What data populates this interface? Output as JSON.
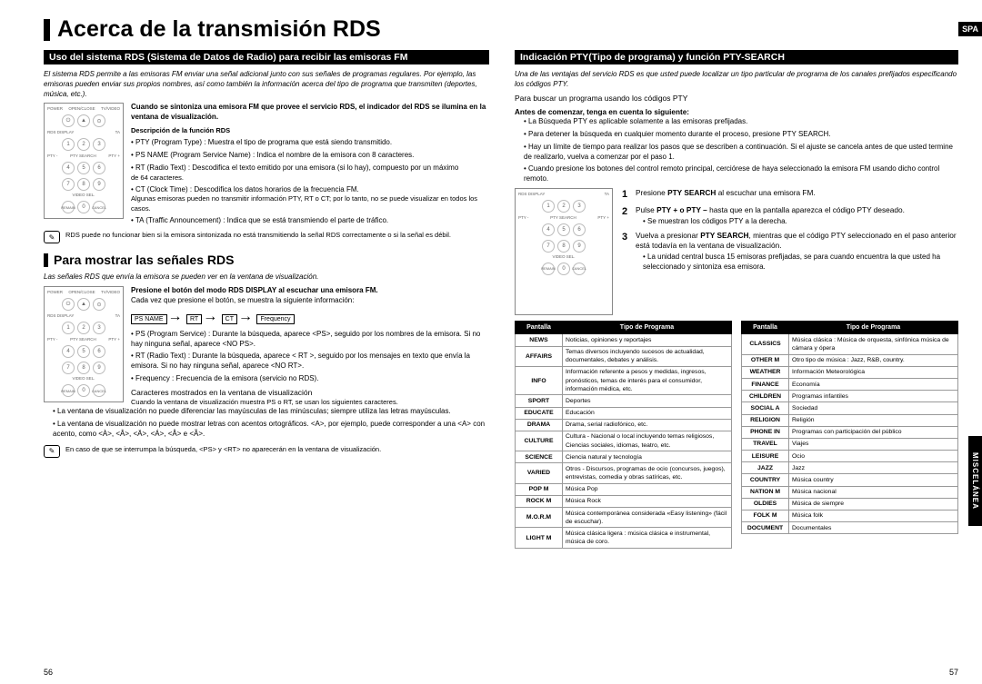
{
  "lang_tab": "SPA",
  "side_tab": "MISCELÁNEA",
  "page_left": "56",
  "page_right": "57",
  "title": "Acerca de la transmisión RDS",
  "left": {
    "h_uso": "Uso del sistema RDS (Sistema de Datos de Radio) para recibir las emisoras FM",
    "intro": "El sistema RDS permite a las emisoras FM enviar una señal adicional junto con sus señales de programas regulares. Por ejemplo, las emisoras pueden enviar sus propios nombres, así como también la información acerca del tipo de programa que transmiten (deportes, música, etc.).",
    "tuned": "Cuando se sintoniza una emisora FM que provee el servicio RDS, el indicador del RDS se ilumina en la ventana de visualización.",
    "desc_head": "Descripción de la función RDS",
    "d1": "PTY (Program Type) : Muestra el tipo de programa que está siendo transmitido.",
    "d2": "PS NAME (Program Service Name) : Indica el nombre de la emisora con 8 caracteres.",
    "d3": "RT (Radio Text) : Descodifica el texto emitido por una emisora (si lo hay), compuesto por un máximo",
    "d3b": "de 64 caracteres.",
    "d4": "CT (Clock Time) : Descodifica los datos horarios de la frecuencia FM.",
    "d4b": "Algunas emisoras pueden no transmitir información PTY, RT o CT; por lo tanto, no se puede visualizar en todos los casos.",
    "d5": "TA (Traffic Announcement) : Indica que se está transmiendo el parte de tráfico.",
    "note1": "RDS puede no funcionar bien si la emisora sintonizada no está transmitiendo la señal RDS correctamente o si la señal es débil.",
    "h_mostrar": "Para mostrar las señales RDS",
    "mostrar_i": "Las señales RDS que envía la emisora se pueden ver en la ventana de visualización.",
    "press_bold": "Presione el botón del modo RDS DISPLAY al escuchar una emisora FM.",
    "press_line": "Cada vez que presione el botón, se muestra la siguiente información:",
    "seq": [
      "PS NAME",
      "RT",
      "CT",
      "Frequency"
    ],
    "m1": "PS (Program Service) : Durante la búsqueda, aparece <PS>, seguido por los nombres de la emisora. Si no hay ninguna señal, aparece <NO PS>.",
    "m2": "RT (Radio Text) : Durante la búsqueda, aparece < RT >, seguido por los mensajes en texto que envía la emisora. Si no hay ninguna señal, aparece <NO RT>.",
    "m3": "Frequency : Frecuencia de la emisora (servicio no RDS).",
    "chars_h": "Caracteres mostrados en la ventana de visualización",
    "chars_p": "Cuando la ventana de visualización muestra PS o RT, se usan los siguientes caracteres.",
    "c1": "La ventana de visualización no puede diferenciar las mayúsculas de las minúsculas; siempre utiliza las letras mayúsculas.",
    "c2": "La ventana de visualización no puede mostrar letras con acentos ortográficos. <A>, por ejemplo, puede corresponder a una <A> con acento, como <À>, <Â>, <Ä>, <Á>, <Å> e <Ã>.",
    "note2": "En caso de que se interrumpa la búsqueda, <PS> y <RT> no aparecerán en la ventana de visualización."
  },
  "right": {
    "h_ind": "Indicación PTY(Tipo de programa) y función PTY-SEARCH",
    "intro": "Una de las ventajas del servicio RDS es que usted puede localizar un tipo particular de programa de los canales prefijados especificando los códigos PTY.",
    "search_h": "Para buscar un programa usando los códigos PTY",
    "before": "Antes de comenzar, tenga en cuenta lo siguiente:",
    "b1": "La Búsqueda PTY es aplicable solamente a las emisoras prefijadas.",
    "b2": "Para detener la búsqueda en cualquier momento durante el proceso, presione PTY SEARCH.",
    "b3": "Hay un límite de tiempo para realizar los pasos que se describen a continuación. Si el ajuste se cancela antes de que usted termine de realizarlo, vuelva a comenzar por el paso 1.",
    "b4": "Cuando presione los botones del control remoto principal, cerciórese de haya seleccionado la emisora FM usando dicho control remoto.",
    "s1": "Presione PTY SEARCH al escuchar una emisora FM.",
    "s1_pre": "Presione ",
    "s1_b": "PTY SEARCH",
    "s1_post": " al escuchar una emisora FM.",
    "s2_pre": "Pulse ",
    "s2_b": "PTY + o PTY –",
    "s2_post": " hasta que en la pantalla aparezca el código PTY deseado.",
    "s2_sub": "Se muestran los códigos PTY a la derecha.",
    "s3_pre": "Vuelva a presionar ",
    "s3_b": "PTY SEARCH",
    "s3_post": ", mientras que el código PTY seleccionado en el paso anterior está todavía en la ventana de visualización.",
    "s3_sub": "La unidad central busca 15 emisoras prefijadas, se para cuando encuentra la que usted ha seleccionado y sintoniza esa emisora.",
    "th1": "Pantalla",
    "th2": "Tipo de Programa",
    "tbl1": [
      [
        "NEWS",
        "Noticias, opiniones y reportajes"
      ],
      [
        "AFFAIRS",
        "Temas diversos incluyendo sucesos de actualidad, documentales, debates y análisis."
      ],
      [
        "INFO",
        "Información referente a pesos y medidas, ingresos, pronósticos, temas de interés para el consumidor, información médica, etc."
      ],
      [
        "SPORT",
        "Deportes"
      ],
      [
        "EDUCATE",
        "Educación"
      ],
      [
        "DRAMA",
        "Drama, serial radiofónico, etc."
      ],
      [
        "CULTURE",
        "Cultura - Nacional o local incluyendo temas religiosos, Ciencias sociales, idiomas, teatro, etc."
      ],
      [
        "SCIENCE",
        "Ciencia natural y tecnología"
      ],
      [
        "VARIED",
        "Otros - Discursos, programas de ocio (concursos, juegos), entrevistas, comedia y obras satíricas, etc."
      ],
      [
        "POP M",
        "Música Pop"
      ],
      [
        "ROCK M",
        "Música Rock"
      ],
      [
        "M.O.R.M",
        "Música contemporánea considerada «Easy listening» (fácil de escuchar)."
      ],
      [
        "LIGHT M",
        "Música clásica ligera : música clásica e instrumental, música de coro."
      ]
    ],
    "tbl2": [
      [
        "CLASSICS",
        "Música clásica : Música de orquesta, sinfónica música de cámara y ópera"
      ],
      [
        "OTHER M",
        "Otro tipo de música : Jazz, R&B, country."
      ],
      [
        "WEATHER",
        "Información Meteorológica"
      ],
      [
        "FINANCE",
        "Economía"
      ],
      [
        "CHILDREN",
        "Programas infantiles"
      ],
      [
        "SOCIAL A",
        "Sociedad"
      ],
      [
        "RELIGION",
        "Religión"
      ],
      [
        "PHONE IN",
        "Programas con participación del público"
      ],
      [
        "TRAVEL",
        "Viajes"
      ],
      [
        "LEISURE",
        "Ocio"
      ],
      [
        "JAZZ",
        "Jazz"
      ],
      [
        "COUNTRY",
        "Música country"
      ],
      [
        "NATION M",
        "Música nacional"
      ],
      [
        "OLDIES",
        "Música de siempre"
      ],
      [
        "FOLK M",
        "Música folk"
      ],
      [
        "DOCUMENT",
        "Documentales"
      ]
    ]
  },
  "remote": {
    "top": [
      "POWER",
      "OPEN/CLOSE",
      "TV/VIDEO"
    ],
    "row1": [
      "RDS DISPLAY",
      "",
      "TA"
    ],
    "row2": [
      "PTY -",
      "PTY SEARCH",
      "PTY +"
    ],
    "bot": [
      "REMAIN",
      "",
      "CANCEL"
    ],
    "vs": "VIDEO SEL."
  }
}
